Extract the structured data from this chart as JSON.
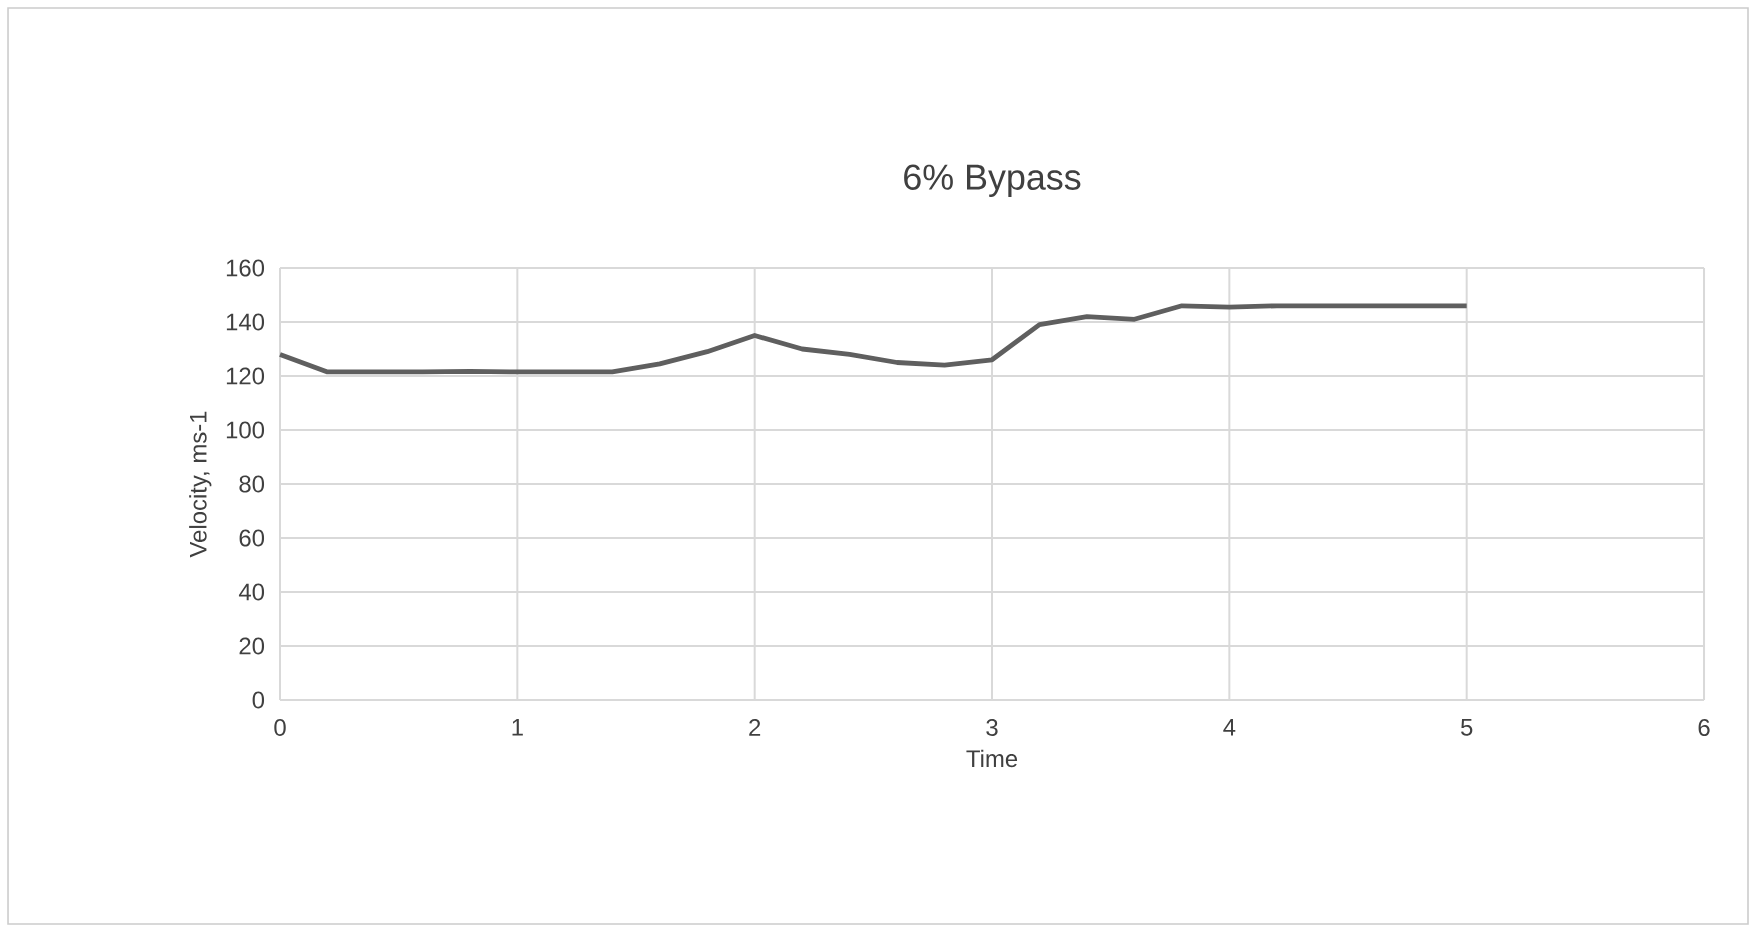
{
  "chart_data": {
    "type": "line",
    "title": "6% Bypass",
    "xlabel": "Time",
    "ylabel": "Velocity, ms-1",
    "xlim": [
      0,
      6
    ],
    "xticks": [
      0,
      1,
      2,
      3,
      4,
      5,
      6
    ],
    "ylim": [
      0,
      160
    ],
    "yticks": [
      0,
      20,
      40,
      60,
      80,
      100,
      120,
      140,
      160
    ],
    "grid": true,
    "marker": "none",
    "line_style": "solid",
    "series": [
      {
        "color": "#5f5f5f",
        "x": [
          0,
          0.2,
          0.4,
          0.6,
          0.8,
          1,
          1.2,
          1.4,
          1.6,
          1.8,
          2,
          2.2,
          2.4,
          2.6,
          2.8,
          3,
          3.2,
          3.4,
          3.6,
          3.8,
          4,
          4.2,
          4.4,
          4.6,
          4.8,
          5
        ],
        "values": [
          128,
          121.5,
          121.5,
          121.5,
          121.7,
          121.5,
          121.5,
          121.5,
          124.5,
          129,
          135,
          130,
          128,
          125,
          124,
          126,
          139,
          142,
          141,
          146,
          145.5,
          146,
          146,
          146,
          146,
          146
        ]
      }
    ]
  }
}
